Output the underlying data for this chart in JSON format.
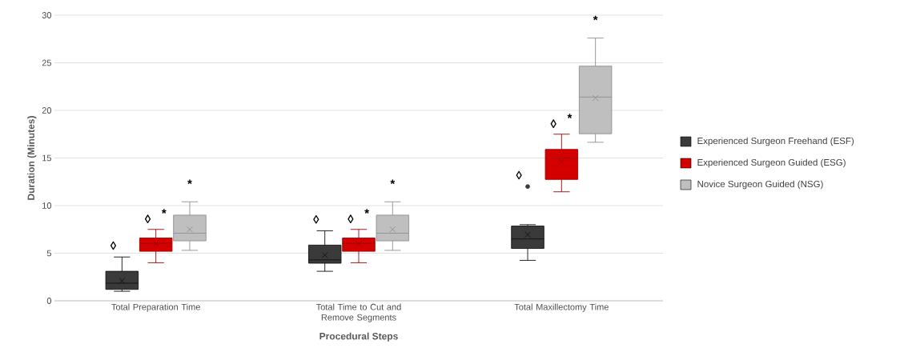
{
  "chart_data": {
    "type": "box",
    "xlabel": "Procedural Steps",
    "ylabel": "Duration (Minutes)",
    "categories": [
      "Total Preparation Time",
      "Total Time to Cut and Remove Segments",
      "Total Maxillectomy Time"
    ],
    "series": [
      {
        "name": "Experienced Surgeon Freehand (ESF)",
        "color": "#3a3a3a",
        "boxes": [
          {
            "low": 1.0,
            "q1": 1.2,
            "median": 1.85,
            "q3": 3.1,
            "high": 4.6,
            "mean": 2.1
          },
          {
            "low": 3.1,
            "q1": 3.95,
            "median": 4.3,
            "q3": 5.85,
            "high": 7.35,
            "mean": 4.8
          },
          {
            "low": 4.25,
            "q1": 5.5,
            "median": 6.5,
            "q3": 7.85,
            "high": 8.0,
            "mean": 6.95,
            "outliers": [
              12.0
            ]
          }
        ]
      },
      {
        "name": "Experienced Surgeon Guided (ESG)",
        "color": "#d40000",
        "boxes": [
          {
            "low": 4.0,
            "q1": 5.2,
            "median": 6.05,
            "q3": 6.6,
            "high": 7.5,
            "mean": 6.0
          },
          {
            "low": 4.0,
            "q1": 5.2,
            "median": 6.05,
            "q3": 6.6,
            "high": 7.5,
            "mean": 6.0
          },
          {
            "low": 11.45,
            "q1": 12.75,
            "median": 15.0,
            "q3": 15.9,
            "high": 17.5,
            "mean": 14.6
          }
        ]
      },
      {
        "name": "Novice Surgeon Guided (NSG)",
        "color": "#bfbfbf",
        "boxes": [
          {
            "low": 5.3,
            "q1": 6.3,
            "median": 7.1,
            "q3": 9.0,
            "high": 10.4,
            "mean": 7.5
          },
          {
            "low": 5.3,
            "q1": 6.3,
            "median": 7.1,
            "q3": 9.0,
            "high": 10.4,
            "mean": 7.5
          },
          {
            "low": 16.65,
            "q1": 17.55,
            "median": 21.4,
            "q3": 24.65,
            "high": 27.6,
            "mean": 21.3
          }
        ]
      }
    ],
    "ylim": [
      0,
      30
    ],
    "yticks": [
      0,
      5,
      10,
      15,
      20,
      25,
      30
    ],
    "grid": "y",
    "legend": "right",
    "annotations": [
      "◊",
      "◊",
      "*",
      "*",
      "◊",
      "◊",
      "*",
      "*",
      "◊",
      "◊",
      "*",
      "*"
    ]
  }
}
